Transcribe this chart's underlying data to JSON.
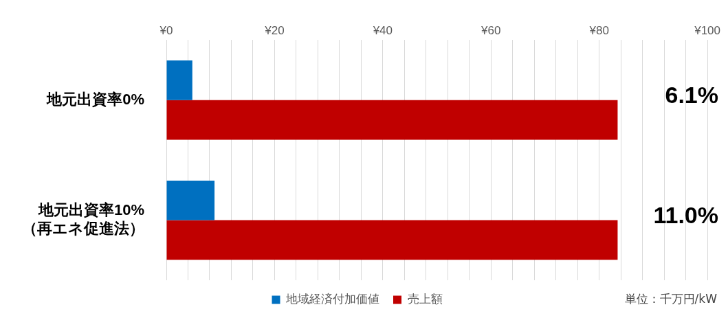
{
  "chart_data": {
    "type": "bar",
    "orientation": "horizontal",
    "categories": [
      "地元出資率0%",
      "地元出資率10%\n（再エネ促進法）"
    ],
    "series": [
      {
        "name": "地域経済付加価値",
        "color": "#0070c0",
        "values": [
          4.8,
          8.9
        ]
      },
      {
        "name": "売上額",
        "color": "#c00000",
        "values": [
          83.4,
          83.4
        ]
      }
    ],
    "xlim": [
      0,
      100
    ],
    "xticks": [
      {
        "value": 0,
        "label": "¥0"
      },
      {
        "value": 4,
        "label": null
      },
      {
        "value": 8,
        "label": null
      },
      {
        "value": 12,
        "label": null
      },
      {
        "value": 16,
        "label": null
      },
      {
        "value": 20,
        "label": "¥20"
      },
      {
        "value": 24,
        "label": null
      },
      {
        "value": 28,
        "label": null
      },
      {
        "value": 32,
        "label": null
      },
      {
        "value": 36,
        "label": null
      },
      {
        "value": 40,
        "label": "¥40"
      },
      {
        "value": 44,
        "label": null
      },
      {
        "value": 48,
        "label": null
      },
      {
        "value": 52,
        "label": null
      },
      {
        "value": 56,
        "label": null
      },
      {
        "value": 60,
        "label": "¥60"
      },
      {
        "value": 64,
        "label": null
      },
      {
        "value": 68,
        "label": null
      },
      {
        "value": 72,
        "label": null
      },
      {
        "value": 76,
        "label": null
      },
      {
        "value": 80,
        "label": "¥80"
      },
      {
        "value": 84,
        "label": null
      },
      {
        "value": 88,
        "label": null
      },
      {
        "value": 92,
        "label": null
      },
      {
        "value": 96,
        "label": null
      },
      {
        "value": 100,
        "label": "¥100"
      }
    ],
    "grid": "x",
    "legend": "bottom",
    "annotations": [
      "6.1%",
      "11.0%",
      "単位：千万円/kW"
    ]
  }
}
